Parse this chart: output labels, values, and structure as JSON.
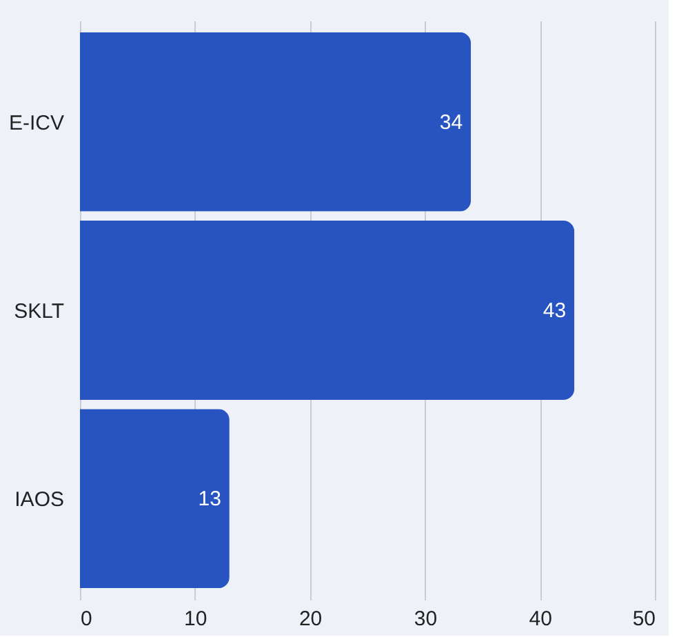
{
  "chart_data": {
    "type": "bar",
    "orientation": "horizontal",
    "categories": [
      "E-ICV",
      "SKLT",
      "IAOS"
    ],
    "values": [
      34,
      43,
      13
    ],
    "color": "#2754c0",
    "xlim": [
      0,
      50
    ],
    "xticks": [
      0,
      10,
      20,
      30,
      40,
      50
    ],
    "grid": "x",
    "data_labels": true
  }
}
